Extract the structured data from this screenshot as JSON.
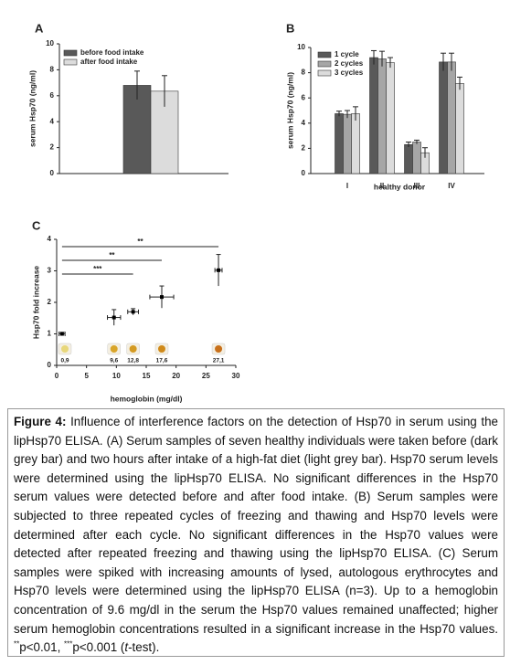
{
  "chart_data": [
    {
      "type": "bar",
      "panel": "A",
      "ylabel": "serum Hsp70 (ng/ml)",
      "categories": [
        null
      ],
      "series": [
        {
          "name": "before food intake",
          "color": "#595959",
          "values": [
            6.8
          ],
          "errors": [
            1.1
          ]
        },
        {
          "name": "after food intake",
          "color": "#dcdcdc",
          "values": [
            6.35
          ],
          "errors": [
            1.2
          ]
        }
      ],
      "ylim": [
        0,
        10
      ],
      "yticks": [
        0,
        2,
        4,
        6,
        8,
        10
      ],
      "legend": "upper left",
      "grid": false
    },
    {
      "type": "bar",
      "panel": "B",
      "ylabel": "serum Hsp70 (ng/ml)",
      "xlabel": "healthy donor",
      "categories": [
        "I",
        "II",
        "III",
        "IV"
      ],
      "series": [
        {
          "name": "1 cycle",
          "color": "#595959",
          "values": [
            4.75,
            9.2,
            2.3,
            8.85
          ],
          "errors": [
            0.2,
            0.55,
            0.2,
            0.7
          ]
        },
        {
          "name": "2 cycles",
          "color": "#a6a6a6",
          "values": [
            4.7,
            9.1,
            2.5,
            8.85
          ],
          "errors": [
            0.3,
            0.6,
            0.15,
            0.7
          ]
        },
        {
          "name": "3 cycles",
          "color": "#dcdcdc",
          "values": [
            4.75,
            8.8,
            1.65,
            7.15
          ],
          "errors": [
            0.55,
            0.4,
            0.4,
            0.5
          ]
        }
      ],
      "ylim": [
        0,
        10
      ],
      "yticks": [
        0,
        2,
        4,
        6,
        8,
        10
      ],
      "legend": "upper left",
      "grid": false
    },
    {
      "type": "scatter",
      "panel": "C",
      "ylabel": "Hsp70 fold increase",
      "xlabel": "hemoglobin (mg/dl)",
      "x": [
        0.9,
        9.6,
        12.8,
        17.6,
        27.1
      ],
      "values": [
        1.0,
        1.52,
        1.7,
        2.17,
        3.02
      ],
      "xerr": [
        0.5,
        1.1,
        0.9,
        2.0,
        0.6
      ],
      "yerr": [
        0.05,
        0.25,
        0.1,
        0.35,
        0.5
      ],
      "sample_labels": [
        "0,9",
        "9,6",
        "12,8",
        "17,6",
        "27,1"
      ],
      "comparisons": [
        {
          "label": "**",
          "from": 0.9,
          "to": 27.1
        },
        {
          "label": "**",
          "from": 0.9,
          "to": 17.6
        },
        {
          "label": "***",
          "from": 0.9,
          "to": 12.8
        }
      ],
      "color": "#000000",
      "xlim": [
        0,
        30
      ],
      "xticks": [
        0,
        5,
        10,
        15,
        20,
        25,
        30
      ],
      "ylim": [
        0,
        4
      ],
      "yticks": [
        0,
        1,
        2,
        3,
        4
      ],
      "grid": false
    }
  ],
  "caption": {
    "label": "Figure 4:",
    "text_1": " Influence of interference factors on the detection of Hsp70 in serum using the lipHsp70 ELISA. (A) Serum samples of seven healthy individuals were taken before (dark grey bar) and two hours after intake of a high-fat diet (light grey bar). Hsp70 serum levels were determined using the lipHsp70 ELISA. No significant differences in the Hsp70 serum values were detected before and after food intake. (B) Serum samples were subjected to three repeated cycles of freezing and thawing and Hsp70 levels were determined after each cycle. No significant differences in the Hsp70 values were detected after repeated freezing and thawing using the lipHsp70 ELISA. (C) Serum samples were spiked with increasing amounts of lysed, autologous erythrocytes and Hsp70 levels were determined using the lipHsp70 ELISA (n=3). Up to a hemoglobin concentration of 9.6 mg/dl in the serum the Hsp70 values remained unaffected; higher serum hemoglobin concentrations resulted in a significant increase in the Hsp70 values. ",
    "sup_1": "**",
    "text_2": "p<0.01, ",
    "sup_2": "***",
    "text_3": "p<0.001 (",
    "italic": "t",
    "text_4": "-test)."
  }
}
